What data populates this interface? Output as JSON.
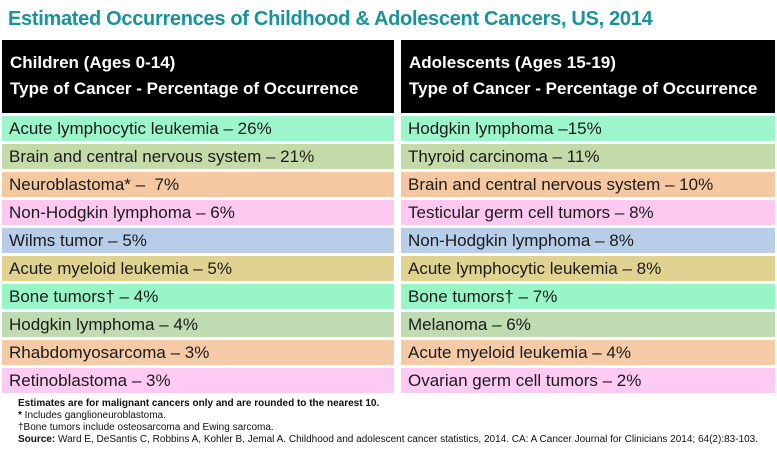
{
  "title": "Estimated Occurrences of Childhood & Adolescent Cancers, US, 2014",
  "columns": [
    {
      "header_line1": "Children (Ages 0-14)",
      "header_line2": "Type of Cancer - Percentage of Occurrence",
      "rows": [
        {
          "label": "Acute lymphocytic leukemia – 26%",
          "color": "#9df5cb"
        },
        {
          "label": "Brain and central nervous system – 21%",
          "color": "#c5daa9"
        },
        {
          "label": "Neuroblastoma* –  7%",
          "color": "#f5c8a2"
        },
        {
          "label": "Non-Hodgkin lymphoma – 6%",
          "color": "#fdc8ef"
        },
        {
          "label": "Wilms tumor – 5%",
          "color": "#b8cde8"
        },
        {
          "label": "Acute myeloid leukemia – 5%",
          "color": "#e0d392"
        },
        {
          "label": "Bone tumors† – 4%",
          "color": "#97f5c6"
        },
        {
          "label": "Hodgkin lymphoma – 4%",
          "color": "#c0dbb2"
        },
        {
          "label": "Rhabdomyosarcoma – 3%",
          "color": "#f5caa6"
        },
        {
          "label": "Retinoblastoma – 3%",
          "color": "#fdcaf3"
        }
      ]
    },
    {
      "header_line1": "Adolescents (Ages 15-19)",
      "header_line2": "Type of Cancer - Percentage of Occurrence",
      "rows": [
        {
          "label": "Hodgkin lymphoma –15%",
          "color": "#9df5cb"
        },
        {
          "label": "Thyroid carcinoma – 11%",
          "color": "#c5daa9"
        },
        {
          "label": "Brain and central nervous system – 10%",
          "color": "#f5c8a2"
        },
        {
          "label": "Testicular germ cell tumors – 8%",
          "color": "#fdc8ef"
        },
        {
          "label": "Non-Hodgkin lymphoma – 8%",
          "color": "#b8cde8"
        },
        {
          "label": "Acute lymphocytic leukemia – 8%",
          "color": "#e0d392"
        },
        {
          "label": "Bone tumors† – 7%",
          "color": "#97f5c6"
        },
        {
          "label": "Melanoma – 6%",
          "color": "#c0dbb2"
        },
        {
          "label": "Acute myeloid leukemia – 4%",
          "color": "#f5caa6"
        },
        {
          "label": "Ovarian germ cell tumors – 2%",
          "color": "#fdcaf3"
        }
      ]
    }
  ],
  "footnotes": {
    "line1": "Estimates are for malignant cancers only and are rounded to the nearest 10.",
    "line2_marker": "*",
    "line2_text": " Includes ganglioneuroblastoma.",
    "line3": "†Bone tumors include osteosarcoma and Ewing sarcoma.",
    "line4_label": "Source:",
    "line4_text": " Ward E, DeSantis C, Robbins A, Kohler B, Jemal A. Childhood and adolescent cancer statistics, 2014. CA: A Cancer Journal for Clinicians 2014; 64(2):83-103."
  },
  "colors": {
    "title_teal": "#17939c",
    "header_bg": "#000000",
    "header_text": "#ffffff",
    "row_text": "#1b1b1b",
    "bottom_rule": "#b7d9d3"
  },
  "chart_data": [
    {
      "type": "table",
      "title": "Children (Ages 0-14) — Type of Cancer - Percentage of Occurrence",
      "categories": [
        "Acute lymphocytic leukemia",
        "Brain and central nervous system",
        "Neuroblastoma*",
        "Non-Hodgkin lymphoma",
        "Wilms tumor",
        "Acute myeloid leukemia",
        "Bone tumors†",
        "Hodgkin lymphoma",
        "Rhabdomyosarcoma",
        "Retinoblastoma"
      ],
      "values": [
        26,
        21,
        7,
        6,
        5,
        5,
        4,
        4,
        3,
        3
      ],
      "unit": "%"
    },
    {
      "type": "table",
      "title": "Adolescents (Ages 15-19) — Type of Cancer - Percentage of Occurrence",
      "categories": [
        "Hodgkin lymphoma",
        "Thyroid carcinoma",
        "Brain and central nervous system",
        "Testicular germ cell tumors",
        "Non-Hodgkin lymphoma",
        "Acute lymphocytic leukemia",
        "Bone tumors†",
        "Melanoma",
        "Acute myeloid leukemia",
        "Ovarian germ cell tumors"
      ],
      "values": [
        15,
        11,
        10,
        8,
        8,
        8,
        7,
        6,
        4,
        2
      ],
      "unit": "%"
    }
  ]
}
